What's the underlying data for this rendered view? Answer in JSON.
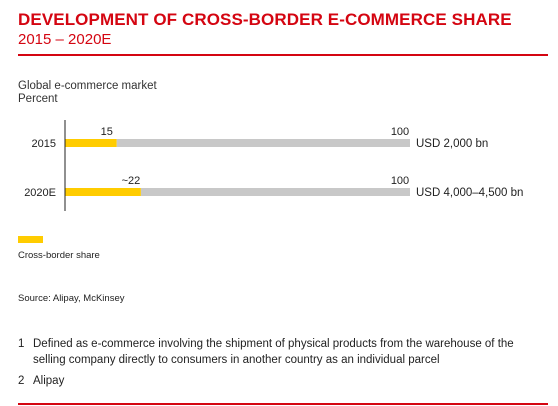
{
  "header": {
    "title": "DEVELOPMENT OF CROSS-BORDER E-COMMERCE SHARE",
    "subtitle": "2015 – 2020E"
  },
  "colors": {
    "accent": "#d40511",
    "cross_border": "#ffcc00",
    "remainder": "#c8c8c8"
  },
  "chart_data": {
    "type": "bar",
    "orientation": "horizontal",
    "stacked": true,
    "title": "DEVELOPMENT OF CROSS-BORDER E-COMMERCE SHARE",
    "subtitle": "2015 – 2020E",
    "ylabel": "Global e-commerce market",
    "unit": "Percent",
    "categories": [
      "2015",
      "2020E"
    ],
    "series": [
      {
        "name": "Cross-border share",
        "values": [
          15,
          22
        ],
        "color": "#ffcc00"
      },
      {
        "values": [
          85,
          78
        ],
        "color": "#c8c8c8"
      }
    ],
    "value_labels": [
      "15",
      "~22"
    ],
    "total_labels": [
      "100",
      "100"
    ],
    "market_size": [
      "USD 2,000 bn",
      "USD 4,000–4,500 bn"
    ],
    "xlim": [
      0,
      100
    ],
    "grid": false,
    "legend": "bottom-left"
  },
  "legend": {
    "label": "Cross-border share"
  },
  "source": "Source: Alipay, McKinsey",
  "footnotes": [
    {
      "num": "1",
      "text": "Defined as e-commerce involving the shipment of physical products from the warehouse of the selling company directly to consumers in another country as an individual parcel"
    },
    {
      "num": "2",
      "text": "Alipay"
    }
  ]
}
